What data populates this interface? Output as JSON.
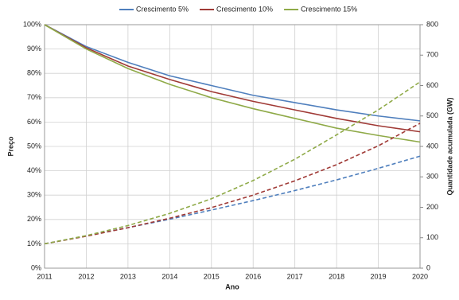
{
  "chart_data": {
    "type": "line",
    "x_label": "Ano",
    "y_label": "Preço",
    "y2_label": "Quantidade acumulada (GW)",
    "x": [
      2011,
      2012,
      2013,
      2014,
      2015,
      2016,
      2017,
      2018,
      2019,
      2020
    ],
    "xlim": [
      2011,
      2020
    ],
    "xticks": [
      2011,
      2012,
      2013,
      2014,
      2015,
      2016,
      2017,
      2018,
      2019,
      2020
    ],
    "ylim": [
      0,
      100
    ],
    "yticks": [
      {
        "value": 0,
        "label": "0%"
      },
      {
        "value": 10,
        "label": "10%"
      },
      {
        "value": 20,
        "label": "20%"
      },
      {
        "value": 30,
        "label": "30%"
      },
      {
        "value": 40,
        "label": "40%"
      },
      {
        "value": 50,
        "label": "50%"
      },
      {
        "value": 60,
        "label": "60%"
      },
      {
        "value": 70,
        "label": "70%"
      },
      {
        "value": 80,
        "label": "80%"
      },
      {
        "value": 90,
        "label": "90%"
      },
      {
        "value": 100,
        "label": "100%"
      }
    ],
    "y2lim": [
      0,
      800
    ],
    "y2ticks": [
      0,
      100,
      200,
      300,
      400,
      500,
      600,
      700,
      800
    ],
    "grid": true,
    "legend": "top",
    "series": [
      {
        "name": "Crescimento 5%",
        "color": "#4f7fbd",
        "values": [
          100,
          91,
          84.5,
          79,
          75,
          71,
          68,
          65,
          62.5,
          60.5
        ]
      },
      {
        "name": "Crescimento 10%",
        "color": "#a03a36",
        "values": [
          100,
          90.5,
          83,
          77.5,
          72.5,
          68.5,
          65,
          61.5,
          58.5,
          56
        ]
      },
      {
        "name": "Crescimento 15%",
        "color": "#8faa48",
        "values": [
          100,
          90,
          82,
          75.5,
          70,
          65.5,
          61.5,
          57.5,
          54.5,
          51.8
        ]
      },
      {
        "color": "#4f7fbd",
        "dash": true,
        "axis": "y2",
        "values": [
          80,
          106,
          133,
          161,
          191,
          222,
          255,
          290,
          328,
          368
        ]
      },
      {
        "color": "#a03a36",
        "dash": true,
        "axis": "y2",
        "values": [
          80,
          105,
          133,
          164,
          199,
          240,
          287,
          340,
          402,
          476
        ]
      },
      {
        "color": "#8faa48",
        "dash": true,
        "axis": "y2",
        "values": [
          80,
          107,
          140,
          180,
          228,
          288,
          358,
          438,
          520,
          612
        ]
      }
    ]
  }
}
